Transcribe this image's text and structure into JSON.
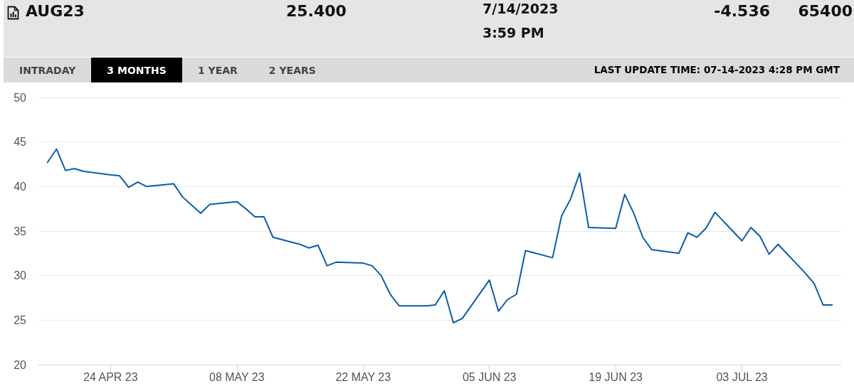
{
  "chart_data": {
    "type": "line",
    "title": "AUG23",
    "annotations": [
      "25.400",
      "7/14/2023",
      "3:59 PM",
      "-4.536",
      "65400",
      "INTRADAY",
      "3 MONTHS",
      "1 YEAR",
      "2 YEARS",
      "LAST UPDATE TIME: 07-14-2023 4:28 PM GMT"
    ],
    "x": [
      "2023-04-17",
      "2023-04-18",
      "2023-04-19",
      "2023-04-20",
      "2023-04-21",
      "2023-04-24",
      "2023-04-25",
      "2023-04-26",
      "2023-04-27",
      "2023-04-28",
      "2023-05-01",
      "2023-05-02",
      "2023-05-03",
      "2023-05-04",
      "2023-05-05",
      "2023-05-08",
      "2023-05-09",
      "2023-05-10",
      "2023-05-11",
      "2023-05-12",
      "2023-05-15",
      "2023-05-16",
      "2023-05-17",
      "2023-05-18",
      "2023-05-19",
      "2023-05-22",
      "2023-05-23",
      "2023-05-24",
      "2023-05-25",
      "2023-05-26",
      "2023-05-29",
      "2023-05-30",
      "2023-05-31",
      "2023-06-01",
      "2023-06-02",
      "2023-06-05",
      "2023-06-06",
      "2023-06-07",
      "2023-06-08",
      "2023-06-09",
      "2023-06-12",
      "2023-06-13",
      "2023-06-14",
      "2023-06-15",
      "2023-06-16",
      "2023-06-19",
      "2023-06-20",
      "2023-06-21",
      "2023-06-22",
      "2023-06-23",
      "2023-06-26",
      "2023-06-27",
      "2023-06-28",
      "2023-06-29",
      "2023-06-30",
      "2023-07-03",
      "2023-07-04",
      "2023-07-05",
      "2023-07-06",
      "2023-07-07",
      "2023-07-10",
      "2023-07-11",
      "2023-07-12",
      "2023-07-13"
    ],
    "values": [
      42.7,
      44.2,
      41.8,
      42.0,
      41.7,
      41.3,
      41.2,
      39.9,
      40.5,
      40.0,
      40.3,
      38.8,
      37.9,
      37.0,
      38.0,
      38.3,
      37.5,
      36.6,
      36.6,
      34.3,
      33.5,
      33.1,
      33.4,
      31.1,
      31.5,
      31.4,
      31.1,
      30.0,
      27.9,
      26.6,
      26.6,
      26.7,
      28.3,
      24.7,
      25.2,
      29.5,
      26.0,
      27.3,
      27.9,
      32.8,
      32.0,
      36.7,
      38.6,
      41.5,
      35.4,
      35.3,
      39.1,
      37.0,
      34.3,
      32.9,
      32.5,
      34.8,
      34.3,
      35.3,
      37.1,
      33.9,
      35.4,
      34.4,
      32.4,
      33.5,
      30.3,
      29.1,
      26.7,
      26.7
    ],
    "color": "#0f5ba7",
    "xlim": [
      "2023-04-16",
      "2023-07-14"
    ],
    "xticks": [
      {
        "value": "2023-04-24",
        "label": "24 APR 23"
      },
      {
        "value": "2023-05-08",
        "label": "08 MAY 23"
      },
      {
        "value": "2023-05-22",
        "label": "22 MAY 23"
      },
      {
        "value": "2023-06-05",
        "label": "05 JUN 23"
      },
      {
        "value": "2023-06-19",
        "label": "19 JUN 23"
      },
      {
        "value": "2023-07-03",
        "label": "03 JUL 23"
      }
    ],
    "ylim": [
      20,
      50
    ],
    "yticks": [
      20,
      25,
      30,
      35,
      40,
      45,
      50
    ],
    "grid": "y"
  }
}
